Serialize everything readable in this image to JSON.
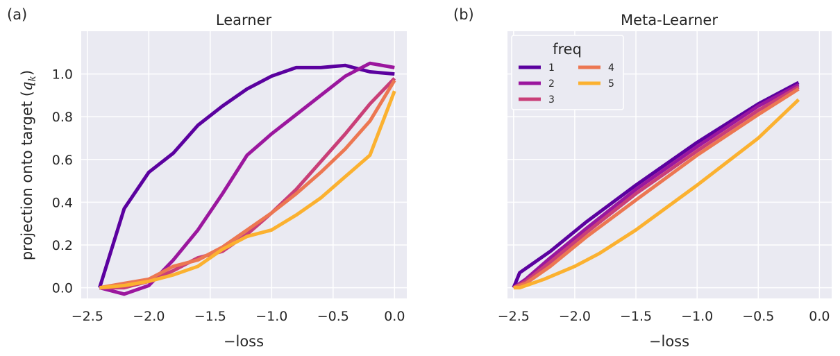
{
  "chart_data": [
    {
      "type": "line",
      "panel_label": "(a)",
      "title": "Learner",
      "xlabel": "−loss",
      "ylabel": "projection onto target (",
      "ylabel_math": "q",
      "ylabel_sub": "k",
      "ylabel_end": ")",
      "xlim": [
        -2.55,
        0.1
      ],
      "ylim": [
        -0.05,
        1.2
      ],
      "xticks": [
        -2.5,
        -2.0,
        -1.5,
        -1.0,
        -0.5,
        0.0
      ],
      "xtick_labels": [
        "−2.5",
        "−2.0",
        "−1.5",
        "−1.0",
        "−0.5",
        "0.0"
      ],
      "yticks": [
        0.0,
        0.2,
        0.4,
        0.6,
        0.8,
        1.0
      ],
      "ytick_labels": [
        "0.0",
        "0.2",
        "0.4",
        "0.6",
        "0.8",
        "1.0"
      ],
      "series": [
        {
          "name": "1",
          "color": "#5b019f",
          "points": [
            [
              -2.4,
              0.0
            ],
            [
              -2.2,
              0.37
            ],
            [
              -2.0,
              0.54
            ],
            [
              -1.8,
              0.63
            ],
            [
              -1.6,
              0.76
            ],
            [
              -1.4,
              0.85
            ],
            [
              -1.2,
              0.93
            ],
            [
              -1.0,
              0.99
            ],
            [
              -0.8,
              1.03
            ],
            [
              -0.6,
              1.03
            ],
            [
              -0.4,
              1.04
            ],
            [
              -0.2,
              1.01
            ],
            [
              0.0,
              1.0
            ]
          ]
        },
        {
          "name": "2",
          "color": "#9b179e",
          "points": [
            [
              -2.4,
              0.0
            ],
            [
              -2.2,
              -0.03
            ],
            [
              -2.0,
              0.01
            ],
            [
              -1.8,
              0.13
            ],
            [
              -1.6,
              0.27
            ],
            [
              -1.4,
              0.44
            ],
            [
              -1.2,
              0.62
            ],
            [
              -1.0,
              0.72
            ],
            [
              -0.8,
              0.81
            ],
            [
              -0.6,
              0.9
            ],
            [
              -0.4,
              0.99
            ],
            [
              -0.2,
              1.05
            ],
            [
              0.0,
              1.03
            ]
          ]
        },
        {
          "name": "3",
          "color": "#c93f78",
          "points": [
            [
              -2.4,
              0.0
            ],
            [
              -2.2,
              0.0
            ],
            [
              -2.0,
              0.03
            ],
            [
              -1.8,
              0.08
            ],
            [
              -1.6,
              0.14
            ],
            [
              -1.4,
              0.17
            ],
            [
              -1.2,
              0.25
            ],
            [
              -1.0,
              0.35
            ],
            [
              -0.8,
              0.46
            ],
            [
              -0.6,
              0.59
            ],
            [
              -0.4,
              0.72
            ],
            [
              -0.2,
              0.86
            ],
            [
              0.0,
              0.98
            ]
          ]
        },
        {
          "name": "4",
          "color": "#ec7752",
          "points": [
            [
              -2.4,
              0.0
            ],
            [
              -2.2,
              0.02
            ],
            [
              -2.0,
              0.04
            ],
            [
              -1.8,
              0.1
            ],
            [
              -1.6,
              0.13
            ],
            [
              -1.4,
              0.19
            ],
            [
              -1.2,
              0.27
            ],
            [
              -1.0,
              0.35
            ],
            [
              -0.8,
              0.44
            ],
            [
              -0.6,
              0.54
            ],
            [
              -0.4,
              0.65
            ],
            [
              -0.2,
              0.78
            ],
            [
              0.0,
              0.97
            ]
          ]
        },
        {
          "name": "5",
          "color": "#fbb130",
          "points": [
            [
              -2.4,
              0.0
            ],
            [
              -2.2,
              0.01
            ],
            [
              -2.0,
              0.03
            ],
            [
              -1.8,
              0.06
            ],
            [
              -1.6,
              0.1
            ],
            [
              -1.4,
              0.18
            ],
            [
              -1.2,
              0.24
            ],
            [
              -1.0,
              0.27
            ],
            [
              -0.8,
              0.34
            ],
            [
              -0.6,
              0.42
            ],
            [
              -0.4,
              0.52
            ],
            [
              -0.2,
              0.62
            ],
            [
              0.0,
              0.92
            ]
          ]
        }
      ]
    },
    {
      "type": "line",
      "panel_label": "(b)",
      "title": "Meta-Learner",
      "xlabel": "−loss",
      "xlim": [
        -2.55,
        0.1
      ],
      "ylim": [
        -0.05,
        1.2
      ],
      "xticks": [
        -2.5,
        -2.0,
        -1.5,
        -1.0,
        -0.5,
        0.0
      ],
      "xtick_labels": [
        "−2.5",
        "−2.0",
        "−1.5",
        "−1.0",
        "−0.5",
        "0.0"
      ],
      "yticks": [
        0.0,
        0.2,
        0.4,
        0.6,
        0.8,
        1.0
      ],
      "legend": {
        "title": "freq",
        "placement": "top-left",
        "columns": 2
      },
      "series": [
        {
          "name": "1",
          "color": "#5b019f",
          "points": [
            [
              -2.5,
              0.0
            ],
            [
              -2.45,
              0.07
            ],
            [
              -2.2,
              0.17
            ],
            [
              -1.9,
              0.31
            ],
            [
              -1.5,
              0.48
            ],
            [
              -1.0,
              0.68
            ],
            [
              -0.5,
              0.86
            ],
            [
              -0.17,
              0.96
            ]
          ]
        },
        {
          "name": "2",
          "color": "#9b179e",
          "points": [
            [
              -2.5,
              0.0
            ],
            [
              -2.4,
              0.04
            ],
            [
              -2.2,
              0.14
            ],
            [
              -1.9,
              0.28
            ],
            [
              -1.5,
              0.46
            ],
            [
              -1.0,
              0.66
            ],
            [
              -0.5,
              0.85
            ],
            [
              -0.17,
              0.95
            ]
          ]
        },
        {
          "name": "3",
          "color": "#c93f78",
          "points": [
            [
              -2.5,
              0.0
            ],
            [
              -2.4,
              0.03
            ],
            [
              -2.2,
              0.12
            ],
            [
              -1.9,
              0.26
            ],
            [
              -1.5,
              0.44
            ],
            [
              -1.0,
              0.64
            ],
            [
              -0.5,
              0.83
            ],
            [
              -0.17,
              0.94
            ]
          ]
        },
        {
          "name": "4",
          "color": "#ec7752",
          "points": [
            [
              -2.5,
              0.0
            ],
            [
              -2.4,
              0.02
            ],
            [
              -2.2,
              0.1
            ],
            [
              -1.9,
              0.24
            ],
            [
              -1.5,
              0.41
            ],
            [
              -1.0,
              0.62
            ],
            [
              -0.5,
              0.81
            ],
            [
              -0.17,
              0.93
            ]
          ]
        },
        {
          "name": "5",
          "color": "#fbb130",
          "points": [
            [
              -2.5,
              0.0
            ],
            [
              -2.45,
              0.0
            ],
            [
              -2.25,
              0.04
            ],
            [
              -2.0,
              0.1
            ],
            [
              -1.8,
              0.16
            ],
            [
              -1.5,
              0.27
            ],
            [
              -1.0,
              0.48
            ],
            [
              -0.5,
              0.7
            ],
            [
              -0.17,
              0.88
            ]
          ]
        }
      ]
    }
  ]
}
